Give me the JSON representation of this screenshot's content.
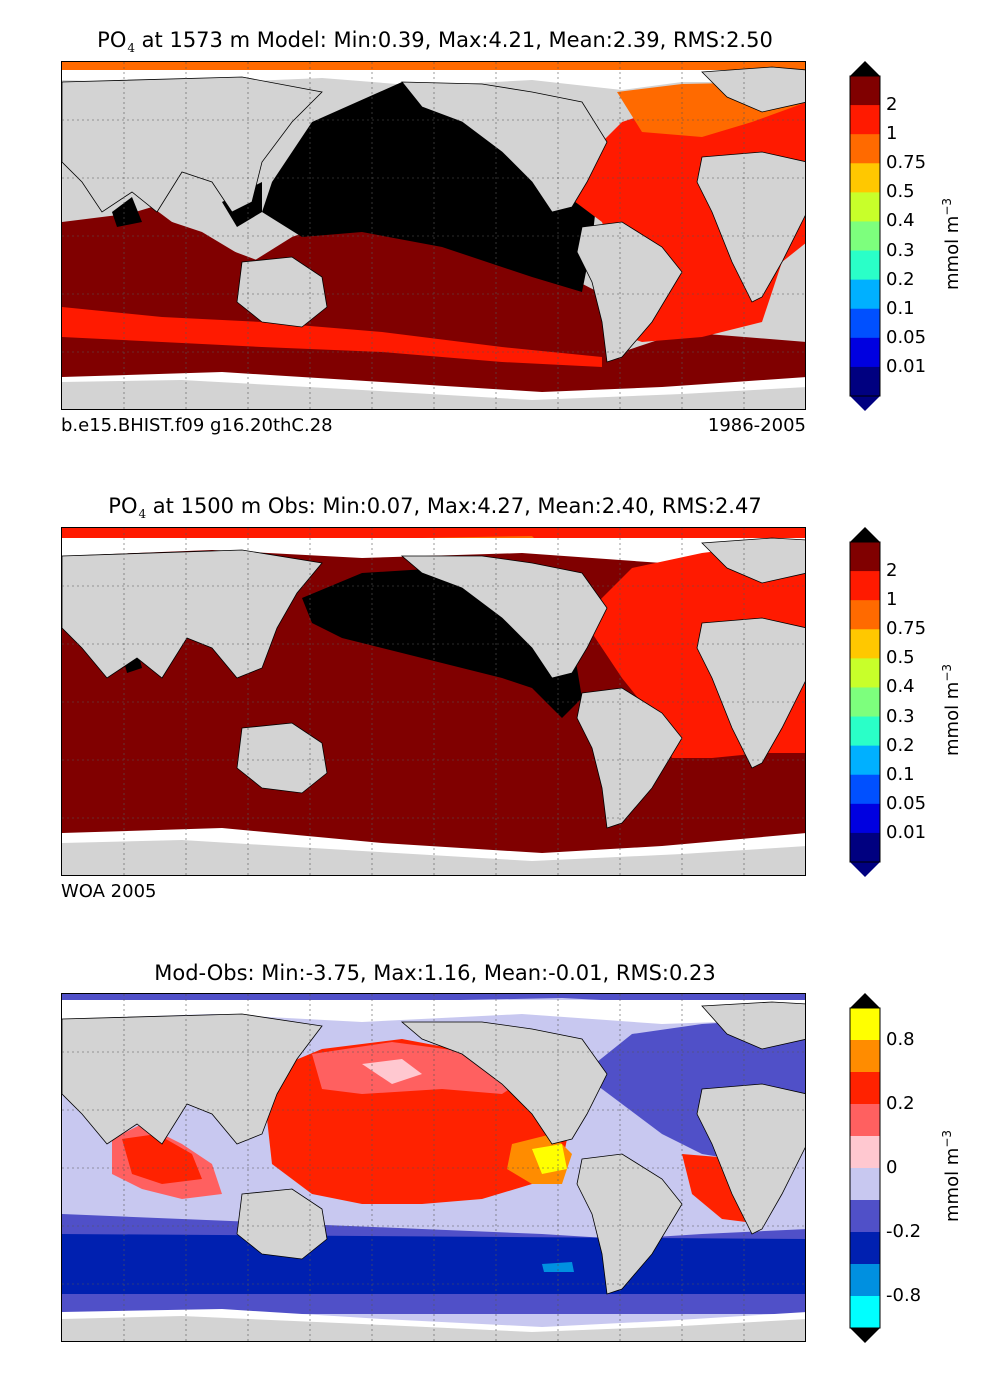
{
  "panels": [
    {
      "title_species": "PO",
      "title_sub": "4",
      "title_rest": " at 1573 m Model: Min:0.39, Max:4.21, Mean:2.39, RMS:2.50",
      "footer_left": "b.e15.BHIST.f09 g16.20thC.28",
      "footer_right": "1986-2005",
      "colorbar": {
        "ticks": [
          "2",
          "1",
          "0.75",
          "0.5",
          "0.4",
          "0.3",
          "0.2",
          "0.1",
          "0.05",
          "0.01"
        ],
        "colors": [
          "#800000",
          "#ff1a00",
          "#ff6a00",
          "#ffc800",
          "#c8ff2a",
          "#7dff7d",
          "#2affc8",
          "#00b0ff",
          "#0050ff",
          "#0000e0",
          "#000080"
        ],
        "over_color": "#000000",
        "under_color": "#000000",
        "unit_main": "mmol m",
        "unit_sup": "−3"
      }
    },
    {
      "title_species": "PO",
      "title_sub": "4",
      "title_rest": " at 1500 m Obs: Min:0.07, Max:4.27, Mean:2.40, RMS:2.47",
      "footer_left": "WOA 2005",
      "footer_right": "",
      "colorbar": {
        "ticks": [
          "2",
          "1",
          "0.75",
          "0.5",
          "0.4",
          "0.3",
          "0.2",
          "0.1",
          "0.05",
          "0.01"
        ],
        "colors": [
          "#800000",
          "#ff1a00",
          "#ff6a00",
          "#ffc800",
          "#c8ff2a",
          "#7dff7d",
          "#2affc8",
          "#00b0ff",
          "#0050ff",
          "#0000e0",
          "#000080"
        ],
        "over_color": "#000000",
        "under_color": "#000000",
        "unit_main": "mmol m",
        "unit_sup": "−3"
      }
    },
    {
      "title_species": "",
      "title_sub": "",
      "title_rest": "Mod-Obs: Min:-3.75, Max:1.16, Mean:-0.01, RMS:0.23",
      "footer_left": "",
      "footer_right": "",
      "colorbar": {
        "ticks": [
          "0.8",
          "0.2",
          "0",
          "-0.2",
          "-0.8"
        ],
        "colors": [
          "#ffff00",
          "#ff8c00",
          "#ff2200",
          "#ff6060",
          "#ffc8d0",
          "#c8c8f0",
          "#5050c8",
          "#0020b0",
          "#0090e0",
          "#00ffff"
        ],
        "over_color": "#000000",
        "under_color": "#000000",
        "unit_main": "mmol m",
        "unit_sup": "−3"
      }
    }
  ],
  "colors": {
    "land": "#d3d3d3",
    "no_data": "#ffffff",
    "coast": "#000000"
  }
}
